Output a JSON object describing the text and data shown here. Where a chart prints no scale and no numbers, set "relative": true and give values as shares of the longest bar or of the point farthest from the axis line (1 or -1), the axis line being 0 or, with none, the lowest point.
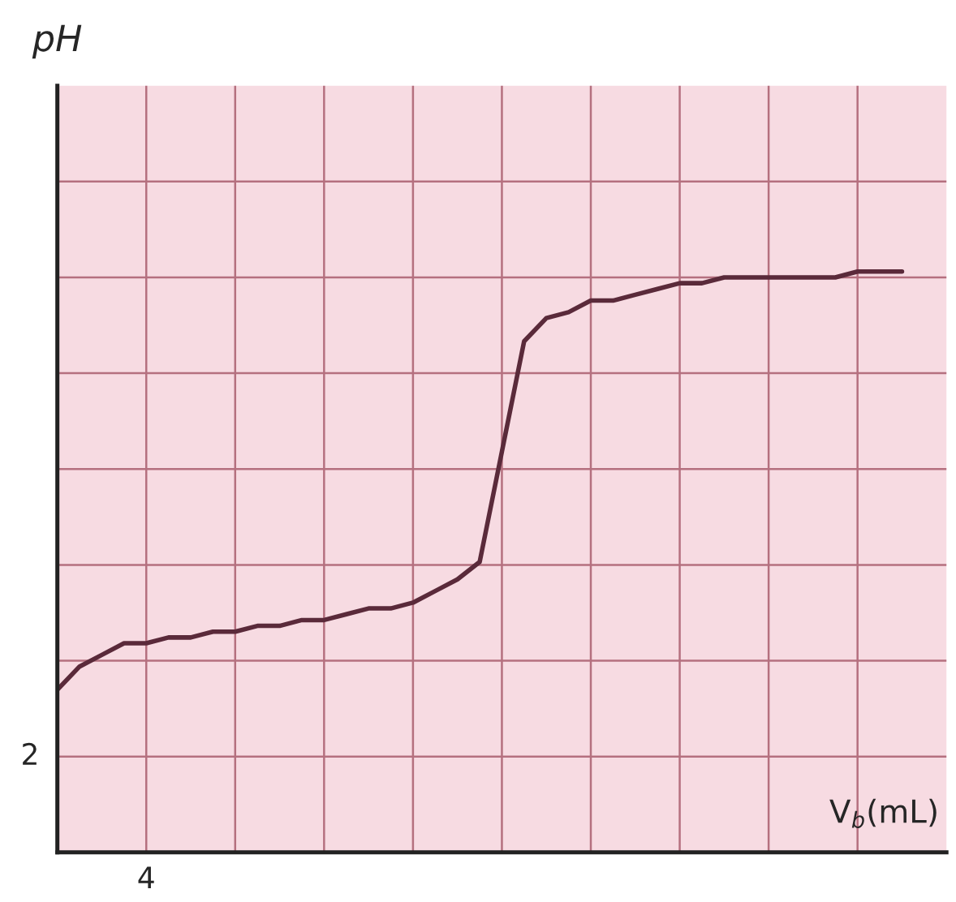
{
  "chart_data": {
    "type": "line",
    "xlabel": "V$_{b}$(mL)",
    "relative": true,
    "annotations": [
      "2",
      "4",
      "pH"
    ],
    "categories": [
      null,
      null,
      null,
      null,
      null,
      null,
      null,
      null,
      null,
      null,
      null,
      null,
      null,
      null,
      null,
      null,
      null,
      null,
      null,
      null,
      null,
      null,
      null,
      null,
      null,
      null,
      null,
      null,
      null,
      null,
      null,
      null,
      null,
      null,
      null,
      null,
      null,
      null,
      null
    ],
    "series": [
      {
        "color": "#5a2a3a",
        "values": [
          0.28,
          0.32,
          0.34,
          0.36,
          0.36,
          0.37,
          0.37,
          0.38,
          0.38,
          0.39,
          0.39,
          0.4,
          0.4,
          0.41,
          0.42,
          0.42,
          0.43,
          0.45,
          0.47,
          0.5,
          0.69,
          0.88,
          0.92,
          0.93,
          0.95,
          0.95,
          0.96,
          0.97,
          0.98,
          0.98,
          0.99,
          0.99,
          0.99,
          0.99,
          0.99,
          0.99,
          1,
          1,
          1
        ]
      }
    ],
    "grid": true,
    "legend": false,
    "marker": "none",
    "line_style": "solid"
  }
}
